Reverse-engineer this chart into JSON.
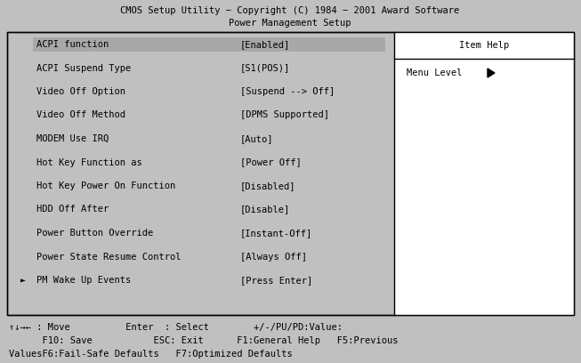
{
  "bg_color": "#c0c0c0",
  "text_color": "#000000",
  "white": "#ffffff",
  "header_line1": "CMOS Setup Utility − Copyright (C) 1984 − 2001 Award Software",
  "header_line2": "Power Management Setup",
  "main_box_border": "#000000",
  "right_panel_title": "Item Help",
  "right_panel_text": "Menu Level",
  "menu_items": [
    [
      "ACPI function",
      "[Enabled]"
    ],
    [
      "ACPI Suspend Type",
      "[S1(POS)]"
    ],
    [
      "Video Off Option",
      "[Suspend --> Off]"
    ],
    [
      "Video Off Method",
      "[DPMS Supported]"
    ],
    [
      "MODEM Use IRQ",
      "[Auto]"
    ],
    [
      "Hot Key Function as",
      "[Power Off]"
    ],
    [
      "Hot Key Power On Function",
      "[Disabled]"
    ],
    [
      "HDD Off After",
      "[Disable]"
    ],
    [
      "Power Button Override",
      "[Instant-Off]"
    ],
    [
      "Power State Resume Control",
      "[Always Off]"
    ],
    [
      "PM Wake Up Events",
      "[Press Enter]"
    ]
  ],
  "arrow_item_index": 10,
  "highlight_item_index": 0,
  "highlight_color": "#a8a8a8",
  "footer_line1": "↑↓→← : Move          Enter  : Select        +/-/PU/PD:Value:",
  "footer_line2": "      F10: Save           ESC: Exit      F1:General Help   F5:Previous",
  "footer_line3": "ValuesF6:Fail-Safe Defaults   F7:Optimized Defaults",
  "font_size": 7.5
}
